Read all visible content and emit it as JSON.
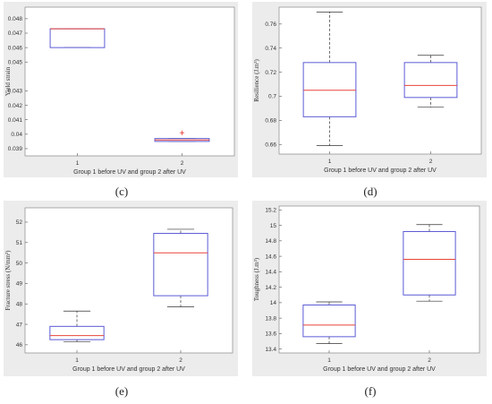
{
  "chart_data": [
    {
      "type": "box",
      "panel_label": "(c)",
      "xlabel": "Group 1 before UV and group 2 after UV",
      "ylabel": "Yield strain",
      "categories": [
        "1",
        "2"
      ],
      "ylim": [
        0.0385,
        0.0488
      ],
      "yticks": [
        "0.039",
        "0.04",
        "0.041",
        "0.042",
        "0.043",
        "0.045",
        "0.046",
        "0.047",
        "0.048"
      ],
      "ytick_values": [
        0.039,
        0.04,
        0.041,
        0.042,
        0.043,
        0.045,
        0.046,
        0.047,
        0.048
      ],
      "boxes": [
        {
          "category": "1",
          "whisker_low": 0.046,
          "q1": 0.046,
          "median": 0.0473,
          "q3": 0.0473,
          "whisker_high": 0.0473,
          "outliers": []
        },
        {
          "category": "2",
          "whisker_low": 0.0395,
          "q1": 0.0395,
          "median": 0.0396,
          "q3": 0.0397,
          "whisker_high": 0.0397,
          "outliers": [
            0.0401
          ]
        }
      ]
    },
    {
      "type": "box",
      "panel_label": "(d)",
      "xlabel": "Group 1 before UV and group 2 after UV",
      "ylabel": "Resilience (J.m³)",
      "categories": [
        "1",
        "2"
      ],
      "ylim": [
        0.652,
        0.774
      ],
      "yticks": [
        "0.66",
        "0.68",
        "0.7",
        "0.72",
        "0.74",
        "0.76"
      ],
      "ytick_values": [
        0.66,
        0.68,
        0.7,
        0.72,
        0.74,
        0.76
      ],
      "boxes": [
        {
          "category": "1",
          "whisker_low": 0.659,
          "q1": 0.683,
          "median": 0.705,
          "q3": 0.728,
          "whisker_high": 0.77,
          "outliers": []
        },
        {
          "category": "2",
          "whisker_low": 0.691,
          "q1": 0.699,
          "median": 0.709,
          "q3": 0.728,
          "whisker_high": 0.734,
          "outliers": []
        }
      ]
    },
    {
      "type": "box",
      "panel_label": "(e)",
      "xlabel": "Group 1 before UV and group 2 after UV",
      "ylabel": "Fracture stress (N/mm²)",
      "categories": [
        "1",
        "2"
      ],
      "ylim": [
        45.6,
        52.7
      ],
      "yticks": [
        "46",
        "47",
        "48",
        "49",
        "50",
        "51",
        "52"
      ],
      "ytick_values": [
        46,
        47,
        48,
        49,
        50,
        51,
        52
      ],
      "boxes": [
        {
          "category": "1",
          "whisker_low": 46.15,
          "q1": 46.25,
          "median": 46.45,
          "q3": 46.9,
          "whisker_high": 47.65,
          "outliers": []
        },
        {
          "category": "2",
          "whisker_low": 47.85,
          "q1": 48.4,
          "median": 50.5,
          "q3": 51.45,
          "whisker_high": 51.65,
          "outliers": []
        }
      ]
    },
    {
      "type": "box",
      "panel_label": "(f)",
      "xlabel": "Group 1 before UV and group 2 after UV",
      "ylabel": "Toughness (J.m³)",
      "categories": [
        "1",
        "2"
      ],
      "ylim": [
        13.35,
        15.25
      ],
      "yticks": [
        "13.4",
        "13.6",
        "13.8",
        "14",
        "14.2",
        "14.4",
        "14.6",
        "14.8",
        "15",
        "15.2"
      ],
      "ytick_values": [
        13.4,
        13.6,
        13.8,
        14,
        14.2,
        14.4,
        14.6,
        14.8,
        15,
        15.2
      ],
      "boxes": [
        {
          "category": "1",
          "whisker_low": 13.47,
          "q1": 13.56,
          "median": 13.71,
          "q3": 13.97,
          "whisker_high": 14.01,
          "outliers": []
        },
        {
          "category": "2",
          "whisker_low": 14.02,
          "q1": 14.1,
          "median": 14.56,
          "q3": 14.92,
          "whisker_high": 15.01,
          "outliers": []
        }
      ]
    }
  ],
  "style": {
    "box_color": "#5b5bd6",
    "median_color": "#e8443a",
    "whisker_color": "#333333",
    "frame_background": "#ececec",
    "plot_background": "#ffffff"
  }
}
